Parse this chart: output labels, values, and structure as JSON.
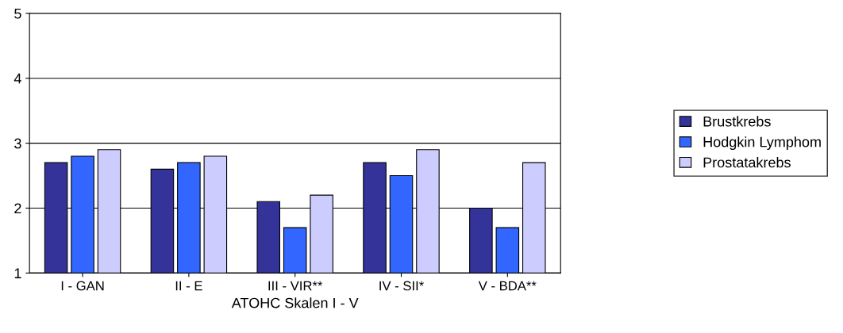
{
  "chart_data": {
    "type": "bar",
    "xlabel": "ATOHC Skalen I - V",
    "categories": [
      "I - GAN",
      "II - E",
      "III - VIR**",
      "IV - SII*",
      "V - BDA**"
    ],
    "series": [
      {
        "name": "Brustkrebs",
        "color": "#333399",
        "values": [
          2.7,
          2.6,
          2.1,
          2.7,
          2.0
        ]
      },
      {
        "name": "Hodgkin Lymphom",
        "color": "#3366ff",
        "values": [
          2.8,
          2.7,
          1.7,
          2.5,
          1.7
        ]
      },
      {
        "name": "Prostatakrebs",
        "color": "#ccccff",
        "values": [
          2.9,
          2.8,
          2.2,
          2.9,
          2.7
        ]
      }
    ],
    "ylim": [
      1,
      5
    ],
    "yticks": [
      1,
      2,
      3,
      4,
      5
    ],
    "grid": "y",
    "legend": "right"
  }
}
